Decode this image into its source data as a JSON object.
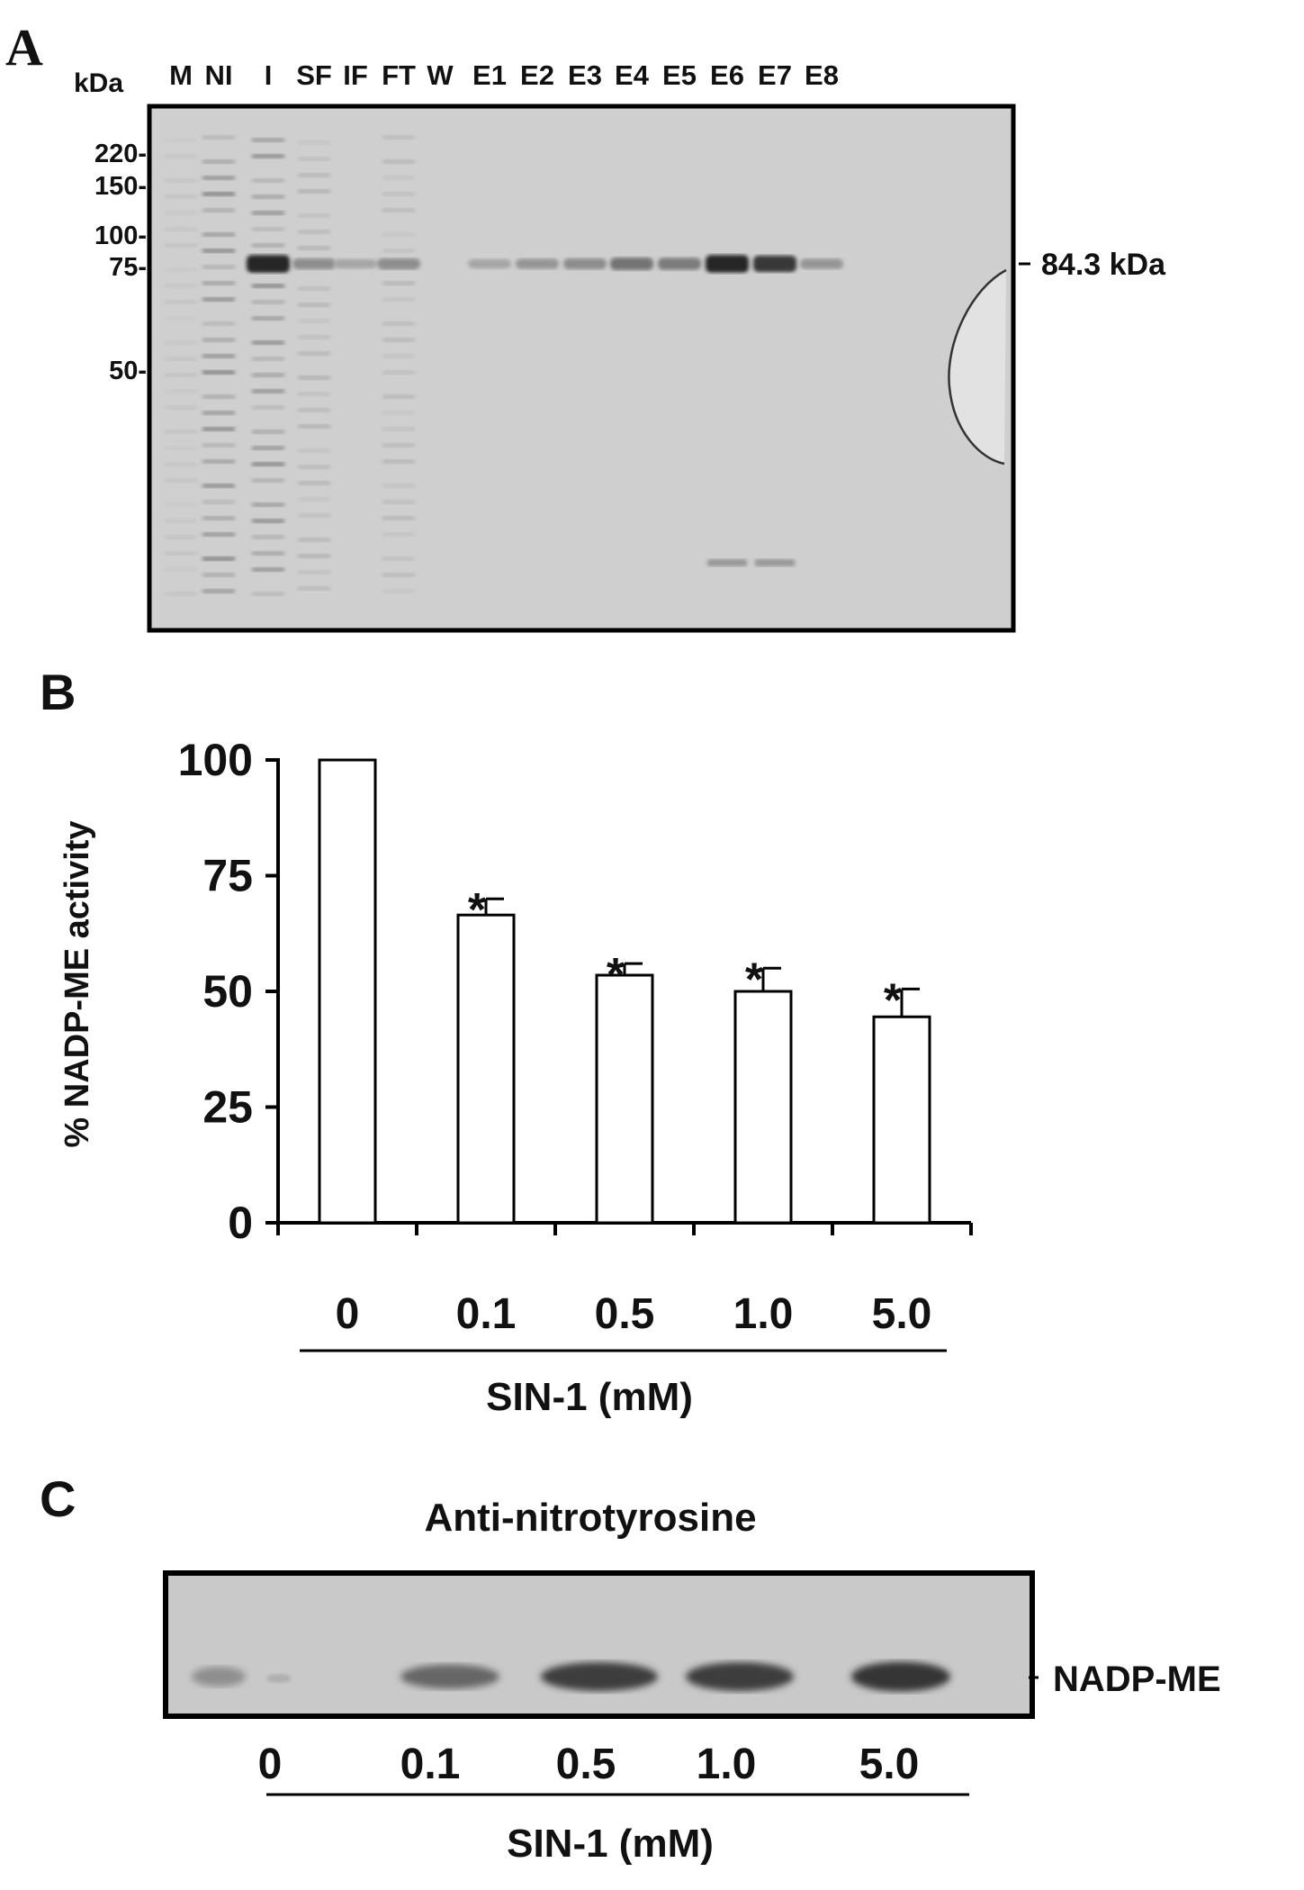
{
  "panel_a": {
    "label": "A",
    "unit": "kDa",
    "lanes": [
      "M",
      "NI",
      "I",
      "SF",
      "IF",
      "FT",
      "W",
      "E1",
      "E2",
      "E3",
      "E4",
      "E5",
      "E6",
      "E7",
      "E8"
    ],
    "markers": [
      "220-",
      "150-",
      "100-",
      "75-",
      "50-"
    ],
    "band_label": "84.3 kDa",
    "band_intensity": [
      0.0,
      0.0,
      0.95,
      0.35,
      0.2,
      0.35,
      0.0,
      0.2,
      0.3,
      0.35,
      0.5,
      0.45,
      0.95,
      0.85,
      0.3
    ]
  },
  "chart_data": {
    "type": "bar",
    "panel_label": "B",
    "categories": [
      "0",
      "0.1",
      "0.5",
      "1.0",
      "5.0"
    ],
    "values": [
      100,
      66.5,
      53.5,
      50,
      44.5
    ],
    "errors": [
      0,
      3.5,
      2.5,
      5,
      6
    ],
    "significance": [
      "",
      "*",
      "*",
      "*",
      "*"
    ],
    "ylabel": "% NADP-ME activity",
    "xlabel": "SIN-1 (mM)",
    "ylim": [
      0,
      100
    ],
    "yticks": [
      "0",
      "25",
      "50",
      "75",
      "100"
    ],
    "bar_color": "#ffffff",
    "edge_color": "#000000"
  },
  "panel_c": {
    "label": "C",
    "title": "Anti-nitrotyrosine",
    "lanes": [
      "0",
      "0.1",
      "0.5",
      "1.0",
      "5.0"
    ],
    "band_label": "NADP-ME",
    "axis_label": "SIN-1 (mM)",
    "band_intensity": [
      0.3,
      0.55,
      0.8,
      0.8,
      0.85
    ]
  }
}
